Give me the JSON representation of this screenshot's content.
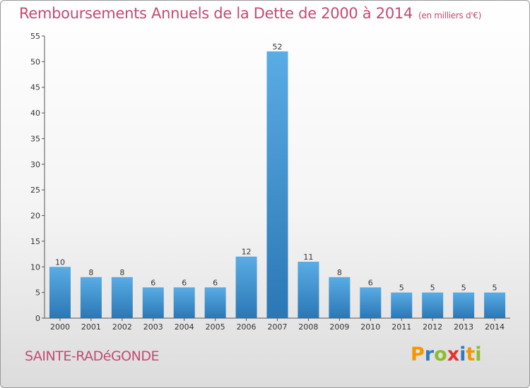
{
  "header": {
    "title": "Remboursements Annuels de la Dette de 2000 à 2014",
    "unit": "(en milliers d'€)"
  },
  "footer": {
    "commune": "SAINTE-RADéGONDE",
    "logo": {
      "letters": [
        "P",
        "r",
        "o",
        "x",
        "i",
        "t",
        "i"
      ],
      "colors": [
        "#f39800",
        "#2e7bc4",
        "#8bbd2c",
        "#e5322d",
        "#2e7bc4",
        "#f39800",
        "#8bbd2c"
      ]
    }
  },
  "colors": {
    "accent": "#c44a73",
    "bar_light": "#5aace4",
    "bar_dark": "#2a77b5"
  },
  "chart_data": {
    "type": "bar",
    "title": "Remboursements Annuels de la Dette de 2000 à 2014",
    "xlabel": "",
    "ylabel": "en milliers d'€",
    "categories": [
      "2000",
      "2001",
      "2002",
      "2003",
      "2004",
      "2005",
      "2006",
      "2007",
      "2008",
      "2009",
      "2010",
      "2011",
      "2012",
      "2013",
      "2014"
    ],
    "values": [
      10,
      8,
      8,
      6,
      6,
      6,
      12,
      52,
      11,
      8,
      6,
      5,
      5,
      5,
      5
    ],
    "ylim": [
      0,
      55
    ],
    "yticks": [
      0,
      5,
      10,
      15,
      20,
      25,
      30,
      35,
      40,
      45,
      50,
      55
    ],
    "grid": false,
    "legend": "none"
  }
}
